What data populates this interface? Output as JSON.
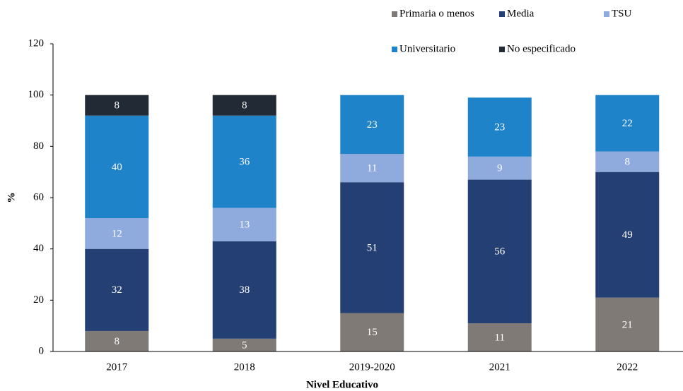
{
  "chart_data": {
    "type": "stacked_bar",
    "categories": [
      "2017",
      "2018",
      "2019-2020",
      "2021",
      "2022"
    ],
    "series": [
      {
        "name": "Primaria o menos",
        "color": "#7f7a76",
        "values": [
          8,
          5,
          15,
          11,
          21
        ]
      },
      {
        "name": "Media",
        "color": "#243f73",
        "values": [
          32,
          38,
          51,
          56,
          49
        ]
      },
      {
        "name": "TSU",
        "color": "#8faadc",
        "values": [
          12,
          13,
          11,
          9,
          8
        ]
      },
      {
        "name": "Universitario",
        "color": "#1f83c9",
        "values": [
          40,
          36,
          23,
          23,
          22
        ]
      },
      {
        "name": "No especificado",
        "color": "#222a35",
        "values": [
          8,
          8,
          null,
          null,
          null
        ]
      }
    ],
    "ylim": [
      0,
      120
    ],
    "yticks": [
      0,
      20,
      40,
      60,
      80,
      100,
      120
    ],
    "ylabel": "%",
    "xlabel": "Nivel Educativo",
    "grid": false
  }
}
